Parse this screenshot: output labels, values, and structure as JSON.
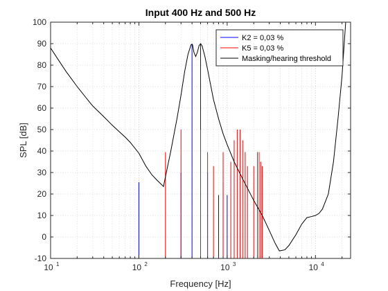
{
  "chart_data": {
    "type": "line",
    "title": "Input 400 Hz and 500 Hz",
    "xlabel": "Frequency [Hz]",
    "ylabel": "SPL [dB]",
    "xscale": "log",
    "xlim": [
      10,
      25000
    ],
    "ylim": [
      -10,
      100
    ],
    "yticks": [
      -10,
      0,
      10,
      20,
      30,
      40,
      50,
      60,
      70,
      80,
      90,
      100
    ],
    "xticks": [
      {
        "value": 10,
        "base": "10",
        "exp": "1"
      },
      {
        "value": 100,
        "base": "10",
        "exp": "2"
      },
      {
        "value": 1000,
        "base": "10",
        "exp": "3"
      },
      {
        "value": 10000,
        "base": "10",
        "exp": "4"
      }
    ],
    "grid": true,
    "legend_position": "top-right",
    "legend": [
      {
        "label": "K2 = 0,03 %",
        "color": "#0000ff"
      },
      {
        "label": "K5 = 0,03 %",
        "color": "#ff0000"
      },
      {
        "label": "Masking/hearing threshold",
        "color": "#000000"
      }
    ],
    "series": [
      {
        "name": "K2 = 0,03 %",
        "color": "#0000ff",
        "style": "stem",
        "points": [
          [
            100,
            25.5
          ],
          [
            300,
            30
          ],
          [
            400,
            90
          ],
          [
            500,
            90
          ],
          [
            600,
            30
          ],
          [
            800,
            19.5
          ],
          [
            900,
            25.5
          ],
          [
            1000,
            19.5
          ]
        ]
      },
      {
        "name": "K5 = 0,03 %",
        "color": "#ff0000",
        "style": "stem",
        "points": [
          [
            200,
            39.5
          ],
          [
            300,
            50
          ],
          [
            500,
            50
          ],
          [
            600,
            39.5
          ],
          [
            700,
            33
          ],
          [
            900,
            39.5
          ],
          [
            1100,
            35
          ],
          [
            1200,
            45
          ],
          [
            1300,
            50
          ],
          [
            1400,
            50
          ],
          [
            1500,
            45
          ],
          [
            1600,
            39.5
          ],
          [
            1700,
            33
          ],
          [
            2000,
            33
          ],
          [
            2200,
            39.5
          ],
          [
            2300,
            39.5
          ],
          [
            2400,
            35
          ],
          [
            2500,
            33
          ]
        ]
      },
      {
        "name": "Masking/hearing threshold",
        "color": "#000000",
        "style": "line",
        "points": [
          [
            10,
            88
          ],
          [
            12,
            83
          ],
          [
            15,
            77
          ],
          [
            20,
            70
          ],
          [
            25,
            65
          ],
          [
            30,
            61
          ],
          [
            40,
            56
          ],
          [
            50,
            52
          ],
          [
            60,
            49
          ],
          [
            70,
            46.5
          ],
          [
            80,
            44
          ],
          [
            100,
            39
          ],
          [
            120,
            33
          ],
          [
            140,
            29
          ],
          [
            160,
            26.5
          ],
          [
            190,
            23.5
          ],
          [
            200,
            28
          ],
          [
            230,
            40
          ],
          [
            270,
            55
          ],
          [
            300,
            66
          ],
          [
            330,
            77
          ],
          [
            360,
            85
          ],
          [
            390,
            89.5
          ],
          [
            405,
            89.5
          ],
          [
            420,
            86
          ],
          [
            440,
            84
          ],
          [
            460,
            86
          ],
          [
            480,
            89
          ],
          [
            500,
            90
          ],
          [
            520,
            89
          ],
          [
            560,
            84
          ],
          [
            600,
            78
          ],
          [
            700,
            64
          ],
          [
            800,
            55
          ],
          [
            900,
            48
          ],
          [
            1000,
            43
          ],
          [
            1200,
            35
          ],
          [
            1500,
            27
          ],
          [
            2000,
            17
          ],
          [
            2500,
            10
          ],
          [
            3000,
            3
          ],
          [
            3500,
            -3
          ],
          [
            3900,
            -6.5
          ],
          [
            4500,
            -6
          ],
          [
            5000,
            -4
          ],
          [
            6000,
            1
          ],
          [
            7000,
            6
          ],
          [
            8000,
            9
          ],
          [
            9000,
            9.5
          ],
          [
            10000,
            10
          ],
          [
            11000,
            11
          ],
          [
            12000,
            13
          ],
          [
            14000,
            20
          ],
          [
            16000,
            35
          ],
          [
            18000,
            55
          ],
          [
            20000,
            75
          ],
          [
            22000,
            100
          ]
        ]
      }
    ]
  }
}
